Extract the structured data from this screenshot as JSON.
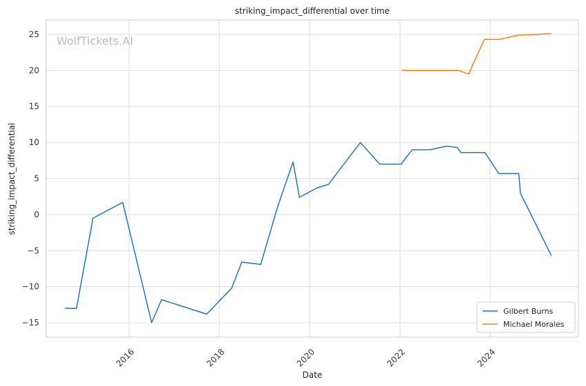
{
  "chart_data": {
    "type": "line",
    "title": "striking_impact_differential over time",
    "xlabel": "Date",
    "ylabel": "striking_impact_differential",
    "watermark": "WolfTickets.AI",
    "xlim": [
      "2014-03-01",
      "2025-12-15"
    ],
    "ylim": [
      -17,
      27
    ],
    "x_ticks": [
      "2016",
      "2018",
      "2020",
      "2022",
      "2024"
    ],
    "y_ticks": [
      -15,
      -10,
      -5,
      0,
      5,
      10,
      15,
      20,
      25
    ],
    "y_tick_labels": [
      "−15",
      "−10",
      "−5",
      "0",
      "5",
      "10",
      "15",
      "20",
      "25"
    ],
    "grid": true,
    "legend_position": "bottom-right",
    "series": [
      {
        "name": "Gilbert Burns",
        "color": "#1f77b4",
        "points": [
          [
            "2014-08-01",
            -13.0
          ],
          [
            "2014-11-01",
            -13.0
          ],
          [
            "2015-03-15",
            -0.5
          ],
          [
            "2015-11-10",
            1.7
          ],
          [
            "2016-07-01",
            -15.0
          ],
          [
            "2016-09-20",
            -11.8
          ],
          [
            "2017-09-20",
            -13.8
          ],
          [
            "2018-04-10",
            -10.2
          ],
          [
            "2018-07-01",
            -6.6
          ],
          [
            "2018-12-01",
            -6.9
          ],
          [
            "2019-04-15",
            1.0
          ],
          [
            "2019-08-20",
            7.3
          ],
          [
            "2019-10-10",
            2.4
          ],
          [
            "2020-03-01",
            3.7
          ],
          [
            "2020-06-01",
            4.2
          ],
          [
            "2021-02-15",
            10.0
          ],
          [
            "2021-07-20",
            7.0
          ],
          [
            "2022-01-10",
            7.0
          ],
          [
            "2022-04-10",
            9.0
          ],
          [
            "2022-09-01",
            9.0
          ],
          [
            "2023-01-15",
            9.5
          ],
          [
            "2023-04-10",
            9.3
          ],
          [
            "2023-05-10",
            8.6
          ],
          [
            "2023-11-20",
            8.6
          ],
          [
            "2024-03-10",
            5.7
          ],
          [
            "2024-08-20",
            5.7
          ],
          [
            "2024-09-01",
            3.0
          ],
          [
            "2025-05-10",
            -5.7
          ]
        ]
      },
      {
        "name": "Michael Morales",
        "color": "#ff7f0e",
        "points": [
          [
            "2022-01-15",
            20.0
          ],
          [
            "2023-04-20",
            20.0
          ],
          [
            "2023-07-10",
            19.5
          ],
          [
            "2023-11-15",
            24.3
          ],
          [
            "2024-03-10",
            24.3
          ],
          [
            "2024-08-20",
            24.9
          ],
          [
            "2025-05-10",
            25.1
          ]
        ]
      }
    ]
  }
}
